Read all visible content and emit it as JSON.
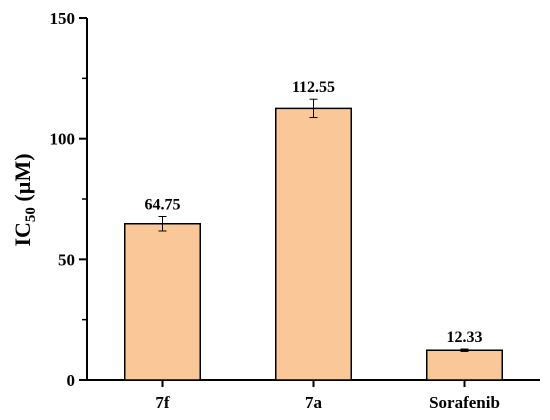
{
  "chart_data": {
    "type": "bar",
    "categories": [
      "7f",
      "7a",
      "Sorafenib"
    ],
    "values": [
      64.75,
      112.55,
      12.33
    ],
    "errors": [
      3.0,
      3.8,
      0.5
    ],
    "data_labels": [
      "64.75",
      "112.55",
      "12.33"
    ],
    "title": "",
    "xlabel": "",
    "ylabel": {
      "main": "IC",
      "sub": "50",
      "unit": " (µM)"
    },
    "ylim": [
      0,
      150
    ],
    "yticks": [
      0,
      50,
      100,
      150
    ],
    "yticks_labels": [
      "0",
      "50",
      "100",
      "150"
    ],
    "grid": false,
    "legend": "none",
    "colors": {
      "bar_fill": "#fac898",
      "bar_stroke": "#000000",
      "axis": "#000000"
    }
  }
}
